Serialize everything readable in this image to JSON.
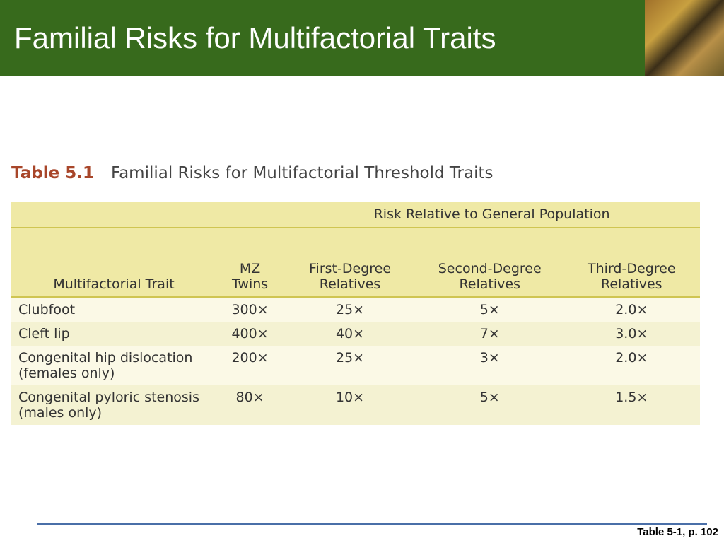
{
  "header": {
    "title": "Familial Risks for Multifactorial Traits"
  },
  "table": {
    "label": "Table 5.1",
    "caption": "Familial Risks for Multifactorial Threshold Traits",
    "group_header": "Risk Relative to General Population",
    "columns": [
      "Multifactorial Trait",
      "MZ Twins",
      "First-Degree Relatives",
      "Second-Degree Relatives",
      "Third-Degree Relatives"
    ],
    "rows": [
      [
        "Clubfoot",
        "300×",
        "25×",
        "5×",
        "2.0×"
      ],
      [
        "Cleft lip",
        "400×",
        "40×",
        "7×",
        "3.0×"
      ],
      [
        "Congenital hip dislocation (females only)",
        "200×",
        "25×",
        "3×",
        "2.0×"
      ],
      [
        "Congenital pyloric stenosis (males only)",
        "80×",
        "10×",
        "5×",
        "1.5×"
      ]
    ]
  },
  "footer": {
    "source": "Table 5-1, p. 102"
  }
}
